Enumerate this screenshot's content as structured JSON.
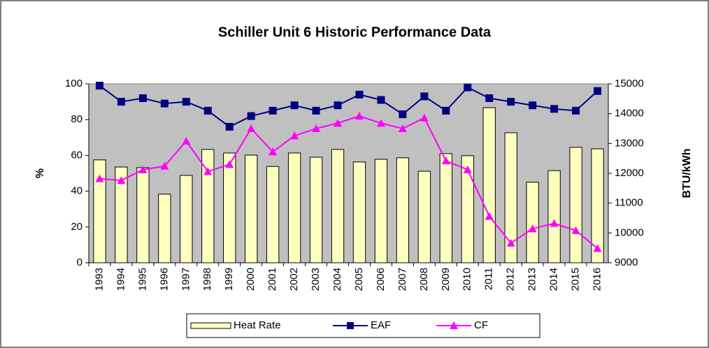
{
  "chart_data": {
    "type": "bar",
    "title": "Schiller Unit 6 Historic Performance Data",
    "y_label": "%",
    "y2_label": "BTU/kWh",
    "categories": [
      "1993",
      "1994",
      "1995",
      "1996",
      "1997",
      "1998",
      "1999",
      "2000",
      "2001",
      "2002",
      "2003",
      "2004",
      "2005",
      "2006",
      "2007",
      "2008",
      "2009",
      "2010",
      "2011",
      "2012",
      "2013",
      "2014",
      "2015",
      "2016"
    ],
    "series": [
      {
        "name": "Heat Rate",
        "type": "bar",
        "axis": "y2",
        "color": "#ffffc0",
        "values": [
          12450,
          12210,
          12190,
          11300,
          11930,
          12800,
          12680,
          12610,
          12230,
          12680,
          12540,
          12800,
          12380,
          12470,
          12520,
          12070,
          12660,
          12590,
          14200,
          13360,
          11700,
          12090,
          12870,
          12820
        ]
      },
      {
        "name": "EAF",
        "type": "line",
        "marker": "square",
        "color": "#000080",
        "values": [
          99,
          90,
          92,
          89,
          90,
          85,
          76,
          82,
          85,
          88,
          85,
          88,
          94,
          91,
          83,
          93,
          85,
          98,
          92,
          90,
          88,
          86,
          85,
          96
        ]
      },
      {
        "name": "CF",
        "type": "line",
        "marker": "triangle",
        "color": "#ff00ff",
        "values": [
          47,
          46,
          52,
          54,
          68,
          51,
          55,
          75,
          62,
          71,
          75,
          78,
          82,
          78,
          75,
          81,
          57,
          52,
          26,
          11,
          19,
          22,
          18,
          8
        ]
      }
    ],
    "ylim": [
      0,
      100
    ],
    "yticks": [
      0,
      20,
      40,
      60,
      80,
      100
    ],
    "y2lim": [
      9000,
      15000
    ],
    "y2ticks": [
      9000,
      10000,
      11000,
      12000,
      13000,
      14000,
      15000
    ],
    "plot_background": "#c0c0c0",
    "legend": "bottom"
  }
}
